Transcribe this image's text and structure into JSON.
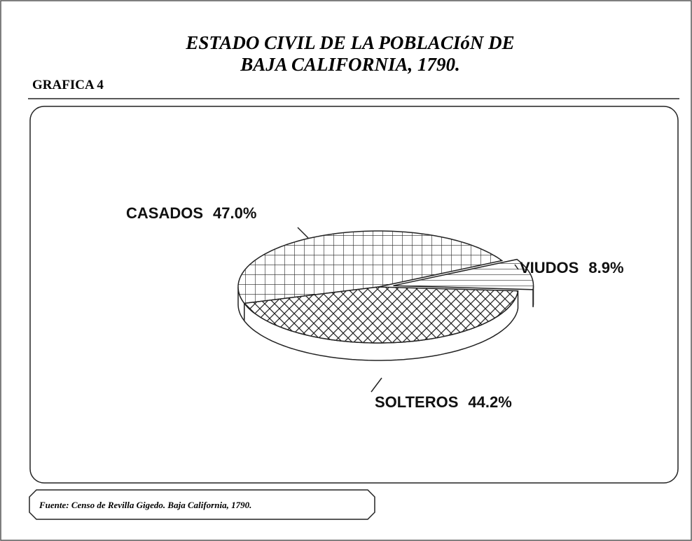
{
  "chart_data": {
    "type": "pie",
    "title": [
      "ESTADO CIVIL DE LA POBLACIóN DE",
      "BAJA CALIFORNIA, 1790."
    ],
    "subtitle": "GRAFICA 4",
    "source": "Fuente: Censo de Revilla Gigedo. Baja California, 1790.",
    "categories": [
      "CASADOS",
      "SOLTEROS",
      "VIUDOS"
    ],
    "values": [
      47.0,
      44.2,
      8.9
    ],
    "value_labels": [
      "47.0%",
      "44.2%",
      "8.9%"
    ]
  }
}
